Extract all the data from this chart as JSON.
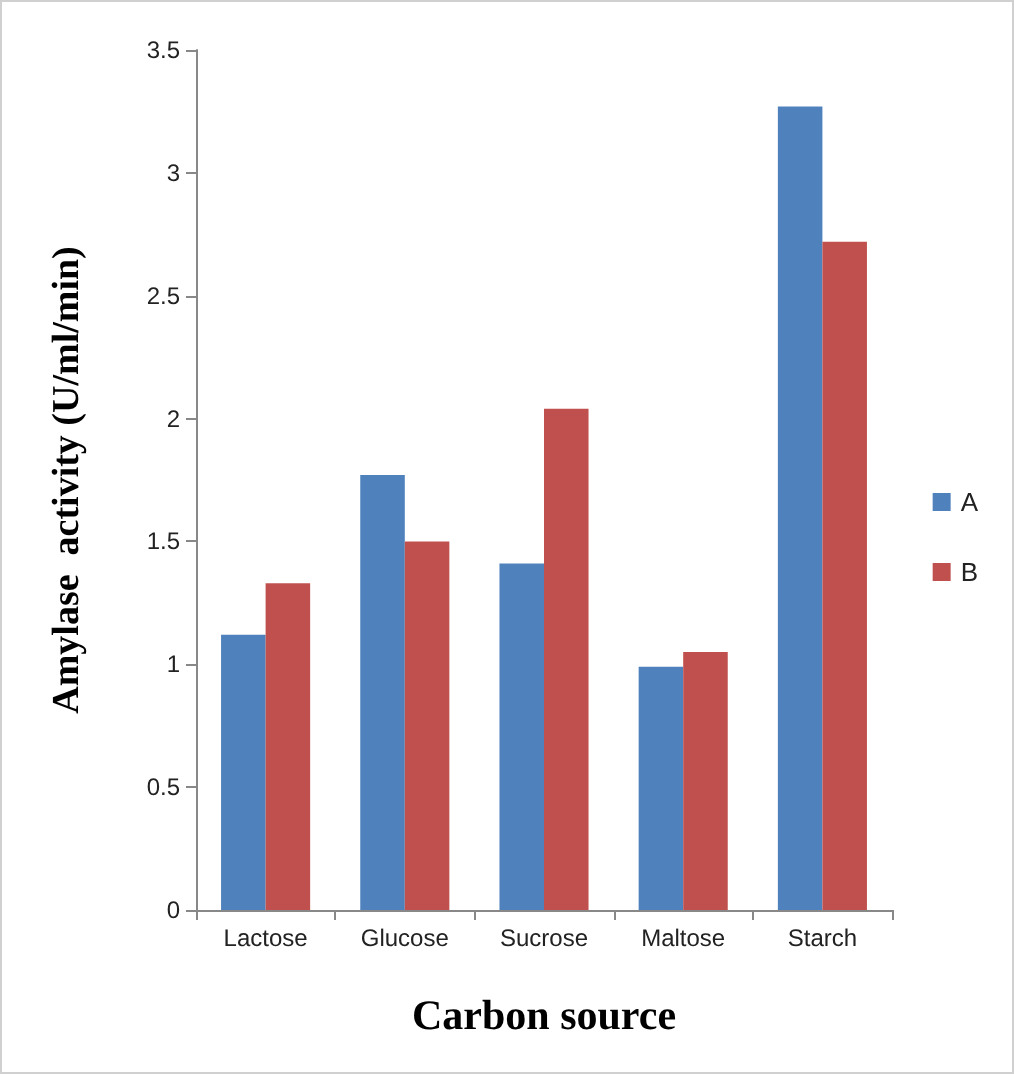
{
  "chart_data": {
    "type": "bar",
    "xlabel": "Carbon source",
    "ylabel": "Amylase  activity (U/ml/min)",
    "categories": [
      "Lactose",
      "Glucose",
      "Sucrose",
      "Maltose",
      "Starch"
    ],
    "series": [
      {
        "name": "A",
        "color": "#4f81bd",
        "values": [
          1.12,
          1.77,
          1.41,
          0.99,
          3.27
        ]
      },
      {
        "name": "B",
        "color": "#c0504d",
        "values": [
          1.33,
          1.5,
          2.04,
          1.05,
          2.72
        ]
      }
    ],
    "ylim": [
      0,
      3.5
    ],
    "yticks": [
      0,
      0.5,
      1,
      1.5,
      2,
      2.5,
      3,
      3.5
    ],
    "grid": false,
    "legend": "right"
  }
}
